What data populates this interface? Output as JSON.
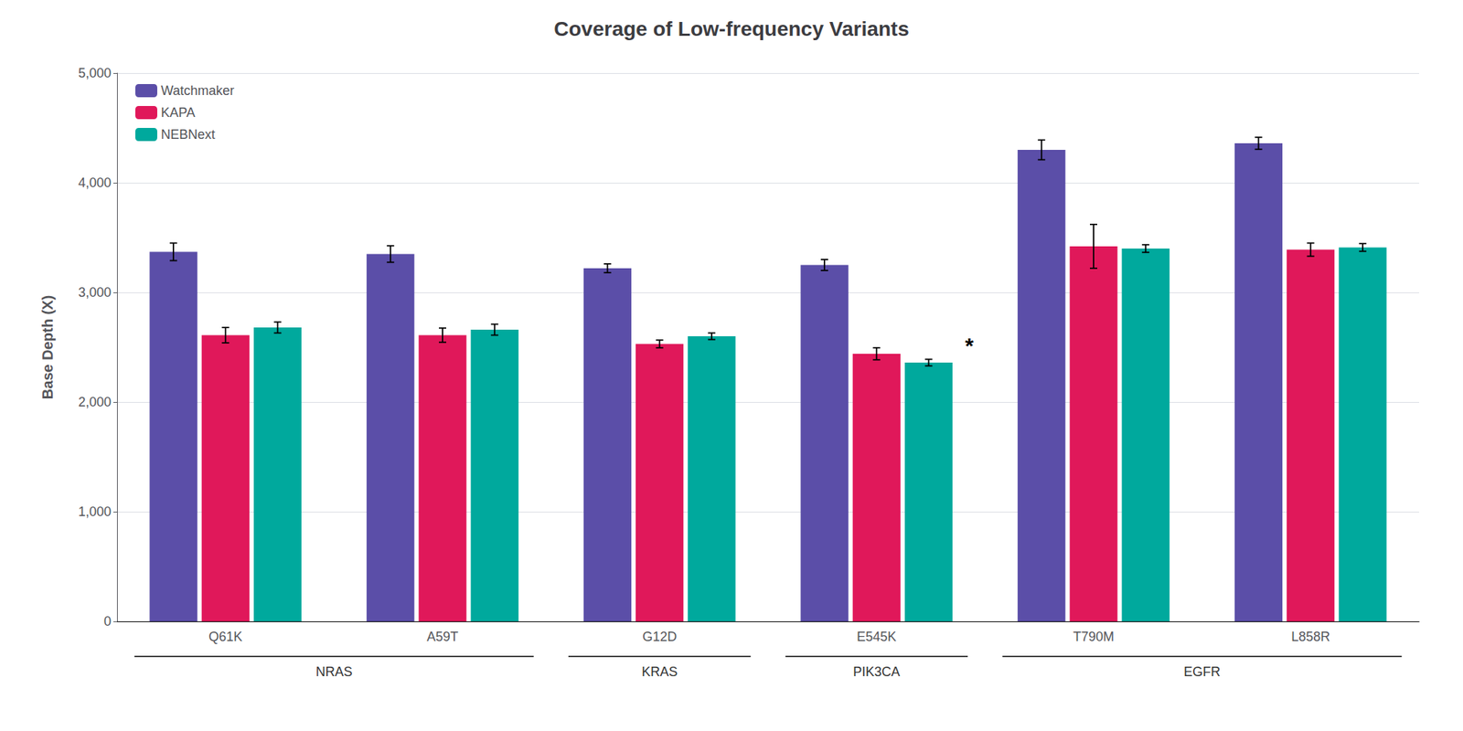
{
  "chart_data": {
    "type": "bar",
    "title": "Coverage of Low-frequency Variants",
    "y_label": "Base Depth (X)",
    "categories": [
      "Q61K",
      "A59T",
      "G12D",
      "E545K",
      "T790M",
      "L858R"
    ],
    "category_groups": [
      {
        "label": "NRAS",
        "categories": [
          "Q61K",
          "A59T"
        ]
      },
      {
        "label": "KRAS",
        "categories": [
          "G12D"
        ]
      },
      {
        "label": "PIK3CA",
        "categories": [
          "E545K"
        ]
      },
      {
        "label": "EGFR",
        "categories": [
          "T790M",
          "L858R"
        ]
      }
    ],
    "series": [
      {
        "name": "Watchmaker",
        "color": "#5B4EA8",
        "values": [
          3370,
          3350,
          3220,
          3250,
          4300,
          4360
        ],
        "errors": [
          80,
          75,
          40,
          50,
          90,
          55
        ]
      },
      {
        "name": "KAPA",
        "color": "#E0185A",
        "values": [
          2610,
          2610,
          2530,
          2440,
          3420,
          3390
        ],
        "errors": [
          70,
          65,
          35,
          55,
          200,
          60
        ]
      },
      {
        "name": "NEBNext",
        "color": "#00A99D",
        "values": [
          2680,
          2660,
          2600,
          2360,
          3400,
          3410
        ],
        "errors": [
          50,
          50,
          30,
          30,
          35,
          35
        ]
      }
    ],
    "annotations": [
      {
        "text": "*",
        "series": "NEBNext",
        "category": "E545K"
      }
    ],
    "ylim": [
      0,
      5000
    ],
    "yticks": [
      0,
      1000,
      2000,
      3000,
      4000,
      5000
    ],
    "grid": true,
    "legend": "upper left"
  }
}
